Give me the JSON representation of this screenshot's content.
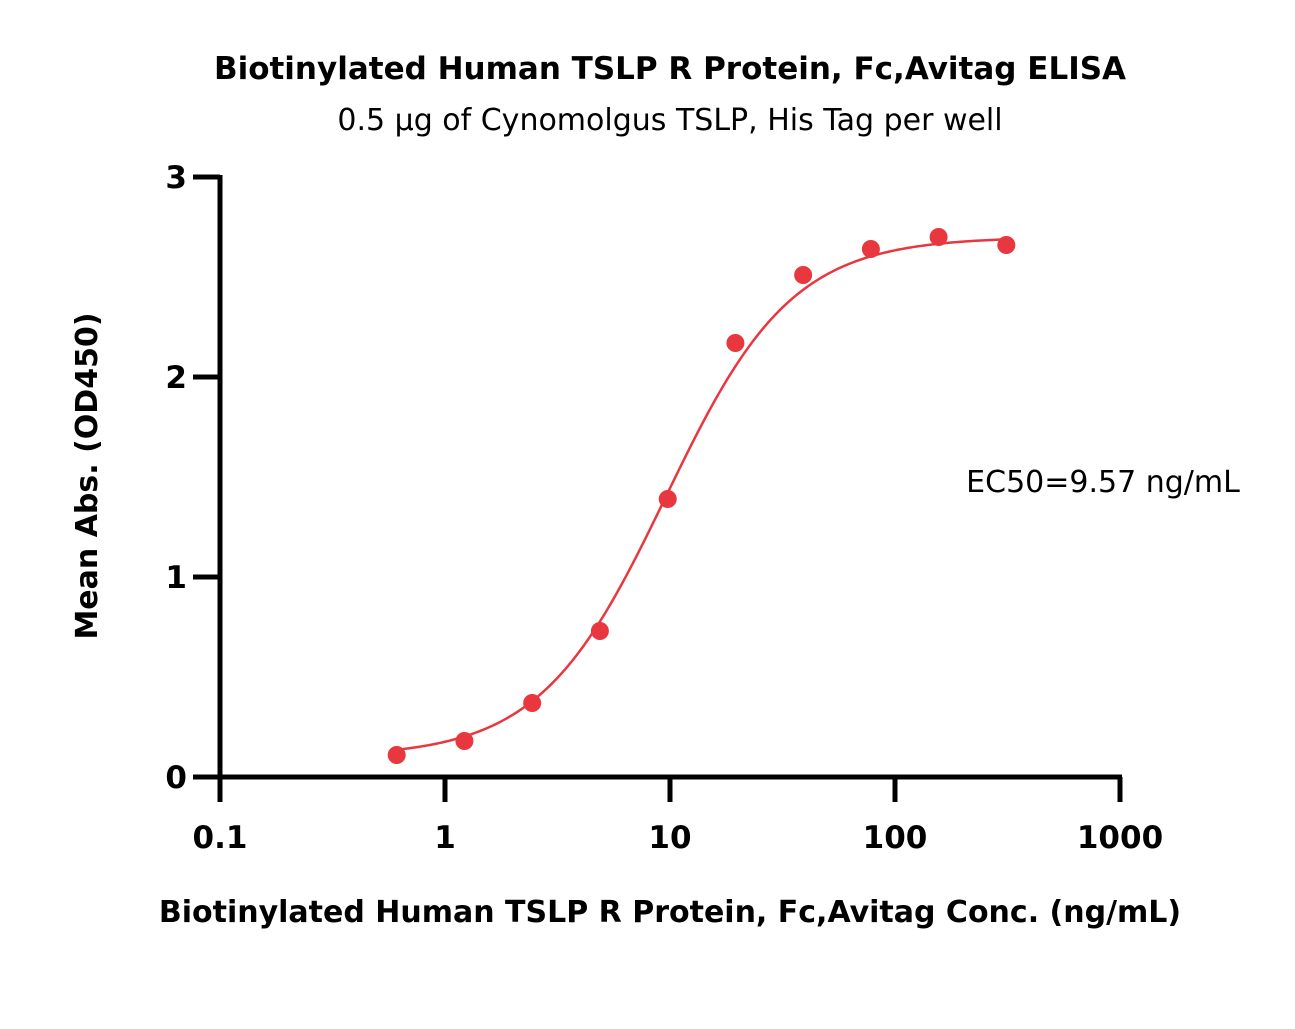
{
  "chart_data": {
    "type": "scatter",
    "title": "Biotinylated Human TSLP R Protein, Fc,Avitag ELISA",
    "subtitle": "0.5 µg of Cynomolgus TSLP, His Tag per well",
    "xlabel": "Biotinylated Human TSLP R Protein, Fc,Avitag Conc. (ng/mL)",
    "ylabel": "Mean Abs. (OD450)",
    "x_scale": "log",
    "xlim": [
      0.1,
      1000
    ],
    "ylim": [
      0,
      3
    ],
    "x_ticks": [
      0.1,
      1,
      10,
      100,
      1000
    ],
    "x_tick_labels": [
      "0.1",
      "1",
      "10",
      "100",
      "1000"
    ],
    "y_ticks": [
      0,
      1,
      2,
      3
    ],
    "y_tick_labels": [
      "0",
      "1",
      "2",
      "3"
    ],
    "grid": false,
    "color": "#e8373e",
    "series": [
      {
        "x": [
          0.61,
          1.22,
          2.44,
          4.88,
          9.77,
          19.53,
          39.06,
          78.13,
          156.25,
          312.5
        ],
        "y": [
          0.11,
          0.18,
          0.37,
          0.73,
          1.39,
          2.17,
          2.51,
          2.64,
          2.7,
          2.66
        ]
      }
    ],
    "fit": {
      "model": "4PL",
      "bottom": 0.1,
      "top": 2.7,
      "ec50": 9.57,
      "hill": 1.55,
      "x_range": [
        0.61,
        312.5
      ]
    },
    "annotation": "EC50=9.57 ng/mL"
  }
}
